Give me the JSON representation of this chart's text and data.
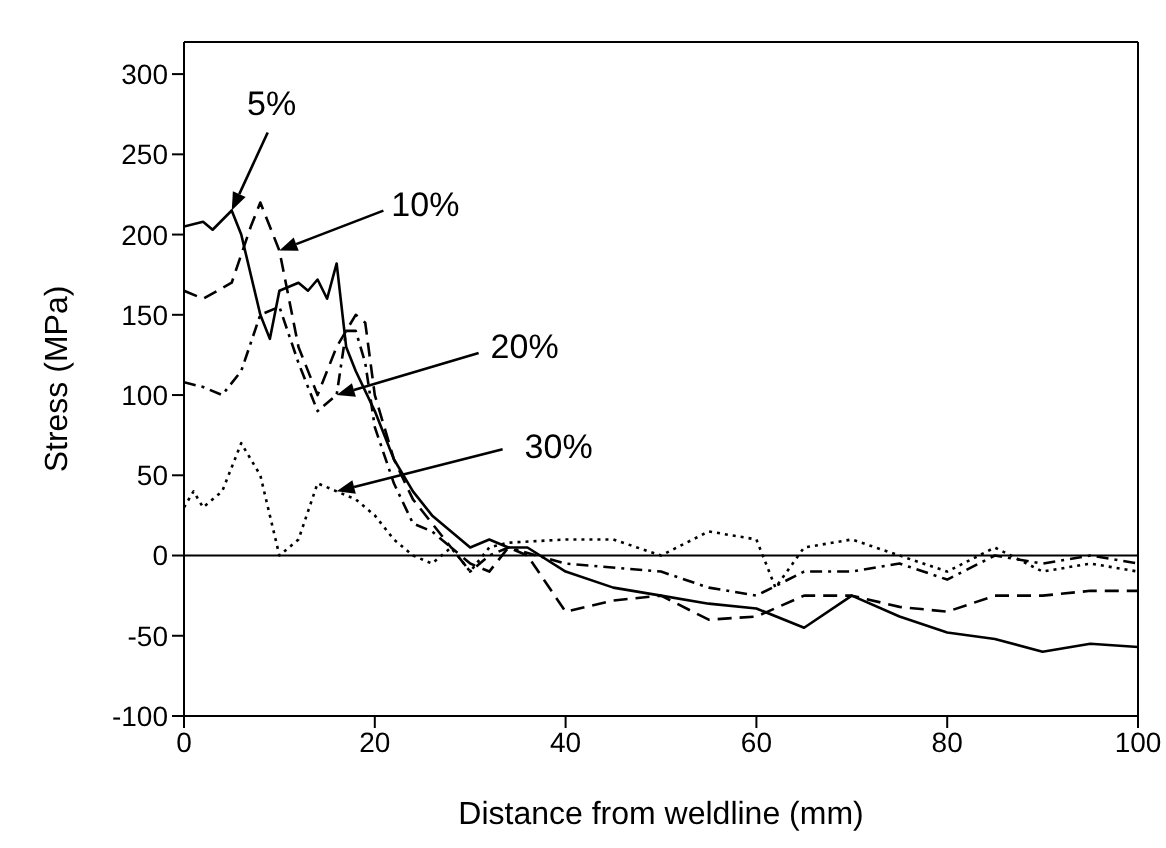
{
  "chart_data": {
    "type": "line",
    "xlabel": "Distance from weldline (mm)",
    "ylabel": "Stress (MPa)",
    "xlim": [
      0,
      100
    ],
    "xticks": [
      0,
      20,
      40,
      60,
      80,
      100
    ],
    "ylim": [
      -100,
      320
    ],
    "yticks": [
      -100,
      -50,
      0,
      50,
      100,
      150,
      200,
      250,
      300
    ],
    "grid": false,
    "legend": false,
    "marker": "none",
    "ref_lines": [
      {
        "axis": "y",
        "value": 0,
        "color": "#000000",
        "line_style": "solid"
      }
    ],
    "annotations": [
      {
        "text": "5%",
        "x": 5,
        "y": 215
      },
      {
        "text": "10%",
        "x": 10,
        "y": 190
      },
      {
        "text": "20%",
        "x": 16,
        "y": 100
      },
      {
        "text": "30%",
        "x": 16,
        "y": 40
      }
    ],
    "series": [
      {
        "color": "#000000",
        "line_style": "solid",
        "x": [
          0,
          2,
          3,
          5,
          6,
          8,
          9,
          10,
          12,
          13,
          14,
          15,
          16,
          17,
          18,
          20,
          22,
          24,
          26,
          28,
          30,
          32,
          34,
          36,
          40,
          45,
          50,
          55,
          60,
          65,
          70,
          75,
          80,
          85,
          90,
          95,
          100
        ],
        "values": [
          205,
          208,
          203,
          215,
          200,
          150,
          135,
          165,
          170,
          165,
          172,
          160,
          182,
          130,
          115,
          90,
          60,
          40,
          25,
          15,
          5,
          10,
          5,
          5,
          -10,
          -20,
          -25,
          -30,
          -33,
          -45,
          -25,
          -38,
          -48,
          -52,
          -60,
          -55,
          -57
        ]
      },
      {
        "color": "#000000",
        "line_style": "dashed",
        "x": [
          0,
          2,
          5,
          7,
          8,
          10,
          12,
          14,
          16,
          18,
          19,
          20,
          22,
          24,
          26,
          28,
          30,
          32,
          34,
          36,
          40,
          45,
          50,
          55,
          60,
          65,
          70,
          75,
          80,
          85,
          90,
          95,
          100
        ],
        "values": [
          165,
          160,
          170,
          205,
          220,
          190,
          130,
          100,
          130,
          150,
          145,
          100,
          60,
          35,
          20,
          5,
          -5,
          -10,
          5,
          0,
          -35,
          -28,
          -25,
          -40,
          -38,
          -25,
          -25,
          -32,
          -35,
          -25,
          -25,
          -22,
          -22
        ]
      },
      {
        "color": "#000000",
        "line_style": "dashdot",
        "x": [
          0,
          2,
          4,
          6,
          8,
          10,
          12,
          14,
          16,
          17,
          18,
          19,
          20,
          22,
          24,
          26,
          28,
          30,
          32,
          34,
          40,
          50,
          55,
          60,
          65,
          70,
          75,
          80,
          85,
          90,
          95,
          100
        ],
        "values": [
          108,
          105,
          100,
          115,
          150,
          155,
          120,
          90,
          100,
          140,
          140,
          120,
          80,
          45,
          20,
          15,
          5,
          -10,
          0,
          5,
          -5,
          -10,
          -20,
          -25,
          -10,
          -10,
          -5,
          -15,
          0,
          -5,
          0,
          -5
        ]
      },
      {
        "color": "#000000",
        "line_style": "dotted",
        "x": [
          0,
          1,
          2,
          4,
          6,
          8,
          10,
          12,
          14,
          16,
          18,
          20,
          22,
          24,
          26,
          28,
          30,
          32,
          34,
          40,
          45,
          50,
          55,
          60,
          62,
          65,
          70,
          75,
          80,
          85,
          90,
          95,
          100
        ],
        "values": [
          30,
          40,
          30,
          40,
          70,
          50,
          0,
          10,
          45,
          40,
          35,
          25,
          10,
          0,
          -5,
          5,
          -10,
          5,
          8,
          10,
          10,
          0,
          15,
          10,
          -20,
          5,
          10,
          0,
          -10,
          5,
          -10,
          -5,
          -10
        ]
      }
    ]
  }
}
